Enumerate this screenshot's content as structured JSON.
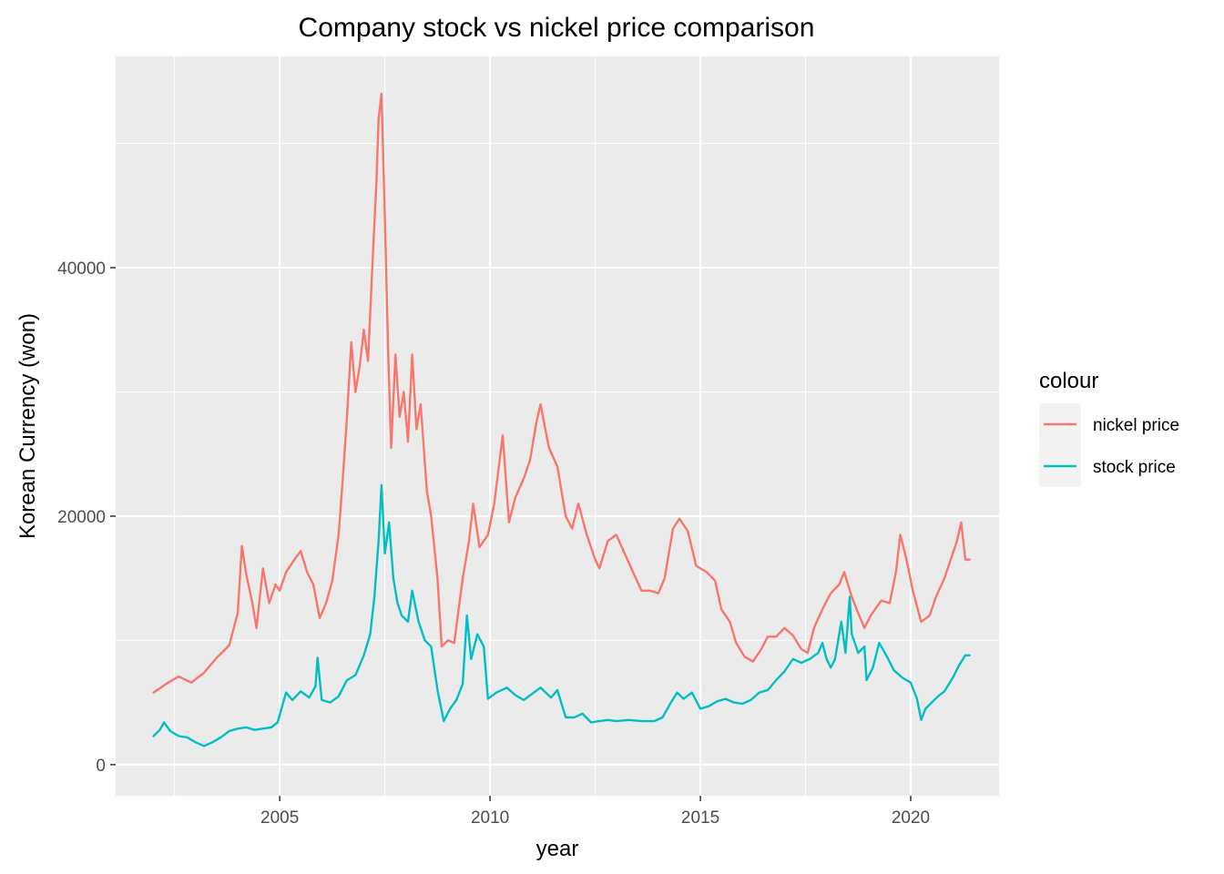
{
  "chart_data": {
    "type": "line",
    "title": "Company stock vs nickel price comparison",
    "xlabel": "year",
    "ylabel": "Korean Currency (won)",
    "xlim": [
      2001.1,
      2022.1
    ],
    "ylim": [
      -2500,
      57000
    ],
    "x_ticks": [
      2005,
      2010,
      2015,
      2020
    ],
    "x_tick_labels": [
      "2005",
      "2010",
      "2015",
      "2020"
    ],
    "y_ticks": [
      0,
      20000,
      40000
    ],
    "y_tick_labels": [
      "0",
      "20000",
      "40000"
    ],
    "grid": true,
    "legend": {
      "title": "colour",
      "position": "right"
    },
    "series": [
      {
        "name": "nickel price",
        "color": "#F8766D",
        "points": [
          [
            2002.0,
            5800
          ],
          [
            2002.3,
            6500
          ],
          [
            2002.6,
            7100
          ],
          [
            2002.9,
            6600
          ],
          [
            2003.2,
            7400
          ],
          [
            2003.5,
            8600
          ],
          [
            2003.8,
            9600
          ],
          [
            2004.0,
            12200
          ],
          [
            2004.1,
            17600
          ],
          [
            2004.2,
            15400
          ],
          [
            2004.35,
            13000
          ],
          [
            2004.45,
            11000
          ],
          [
            2004.6,
            15800
          ],
          [
            2004.75,
            13000
          ],
          [
            2004.9,
            14500
          ],
          [
            2005.0,
            14000
          ],
          [
            2005.15,
            15500
          ],
          [
            2005.35,
            16500
          ],
          [
            2005.5,
            17200
          ],
          [
            2005.65,
            15500
          ],
          [
            2005.8,
            14500
          ],
          [
            2005.95,
            11800
          ],
          [
            2006.1,
            13000
          ],
          [
            2006.25,
            14800
          ],
          [
            2006.4,
            18500
          ],
          [
            2006.5,
            23000
          ],
          [
            2006.6,
            28000
          ],
          [
            2006.7,
            34000
          ],
          [
            2006.8,
            30000
          ],
          [
            2006.9,
            32000
          ],
          [
            2007.0,
            35000
          ],
          [
            2007.1,
            32500
          ],
          [
            2007.2,
            40000
          ],
          [
            2007.3,
            47000
          ],
          [
            2007.35,
            52000
          ],
          [
            2007.42,
            54000
          ],
          [
            2007.5,
            44000
          ],
          [
            2007.58,
            33000
          ],
          [
            2007.65,
            25500
          ],
          [
            2007.75,
            33000
          ],
          [
            2007.85,
            28000
          ],
          [
            2007.95,
            30000
          ],
          [
            2008.05,
            26000
          ],
          [
            2008.15,
            33000
          ],
          [
            2008.25,
            27000
          ],
          [
            2008.35,
            29000
          ],
          [
            2008.5,
            22000
          ],
          [
            2008.6,
            20000
          ],
          [
            2008.75,
            15000
          ],
          [
            2008.85,
            9500
          ],
          [
            2009.0,
            10000
          ],
          [
            2009.15,
            9800
          ],
          [
            2009.35,
            15000
          ],
          [
            2009.5,
            18000
          ],
          [
            2009.6,
            21000
          ],
          [
            2009.75,
            17500
          ],
          [
            2009.95,
            18500
          ],
          [
            2010.1,
            21000
          ],
          [
            2010.3,
            26500
          ],
          [
            2010.45,
            19500
          ],
          [
            2010.6,
            21500
          ],
          [
            2010.8,
            23000
          ],
          [
            2010.95,
            24500
          ],
          [
            2011.1,
            27500
          ],
          [
            2011.2,
            29000
          ],
          [
            2011.4,
            25500
          ],
          [
            2011.6,
            24000
          ],
          [
            2011.8,
            20000
          ],
          [
            2011.95,
            19000
          ],
          [
            2012.1,
            21000
          ],
          [
            2012.3,
            18500
          ],
          [
            2012.5,
            16500
          ],
          [
            2012.6,
            15800
          ],
          [
            2012.8,
            18000
          ],
          [
            2013.0,
            18500
          ],
          [
            2013.2,
            17000
          ],
          [
            2013.4,
            15500
          ],
          [
            2013.6,
            14000
          ],
          [
            2013.8,
            14000
          ],
          [
            2014.0,
            13800
          ],
          [
            2014.15,
            15000
          ],
          [
            2014.35,
            19000
          ],
          [
            2014.5,
            19800
          ],
          [
            2014.7,
            18800
          ],
          [
            2014.9,
            16000
          ],
          [
            2015.15,
            15500
          ],
          [
            2015.35,
            14800
          ],
          [
            2015.5,
            12500
          ],
          [
            2015.7,
            11500
          ],
          [
            2015.85,
            9800
          ],
          [
            2016.05,
            8700
          ],
          [
            2016.25,
            8300
          ],
          [
            2016.45,
            9300
          ],
          [
            2016.6,
            10300
          ],
          [
            2016.8,
            10300
          ],
          [
            2017.0,
            11000
          ],
          [
            2017.2,
            10400
          ],
          [
            2017.4,
            9300
          ],
          [
            2017.55,
            9000
          ],
          [
            2017.7,
            11000
          ],
          [
            2017.9,
            12500
          ],
          [
            2018.1,
            13800
          ],
          [
            2018.3,
            14500
          ],
          [
            2018.42,
            15500
          ],
          [
            2018.6,
            13500
          ],
          [
            2018.75,
            12200
          ],
          [
            2018.9,
            11000
          ],
          [
            2019.05,
            12000
          ],
          [
            2019.3,
            13200
          ],
          [
            2019.5,
            13000
          ],
          [
            2019.65,
            15500
          ],
          [
            2019.75,
            18500
          ],
          [
            2019.9,
            16500
          ],
          [
            2020.05,
            14000
          ],
          [
            2020.25,
            11500
          ],
          [
            2020.45,
            12000
          ],
          [
            2020.6,
            13500
          ],
          [
            2020.8,
            15000
          ],
          [
            2020.95,
            16500
          ],
          [
            2021.1,
            18000
          ],
          [
            2021.2,
            19500
          ],
          [
            2021.3,
            16500
          ],
          [
            2021.4,
            16500
          ]
        ]
      },
      {
        "name": "stock price",
        "color": "#00BFC4",
        "points": [
          [
            2002.0,
            2300
          ],
          [
            2002.15,
            2800
          ],
          [
            2002.25,
            3400
          ],
          [
            2002.4,
            2700
          ],
          [
            2002.6,
            2300
          ],
          [
            2002.8,
            2200
          ],
          [
            2003.0,
            1800
          ],
          [
            2003.2,
            1500
          ],
          [
            2003.4,
            1800
          ],
          [
            2003.6,
            2200
          ],
          [
            2003.8,
            2700
          ],
          [
            2004.0,
            2900
          ],
          [
            2004.2,
            3000
          ],
          [
            2004.4,
            2800
          ],
          [
            2004.6,
            2900
          ],
          [
            2004.8,
            3000
          ],
          [
            2004.95,
            3400
          ],
          [
            2005.05,
            4600
          ],
          [
            2005.15,
            5800
          ],
          [
            2005.3,
            5200
          ],
          [
            2005.5,
            5900
          ],
          [
            2005.7,
            5400
          ],
          [
            2005.85,
            6300
          ],
          [
            2005.9,
            8600
          ],
          [
            2006.0,
            5200
          ],
          [
            2006.2,
            5000
          ],
          [
            2006.4,
            5500
          ],
          [
            2006.6,
            6800
          ],
          [
            2006.8,
            7200
          ],
          [
            2007.0,
            8800
          ],
          [
            2007.15,
            10500
          ],
          [
            2007.25,
            13500
          ],
          [
            2007.35,
            18000
          ],
          [
            2007.42,
            22500
          ],
          [
            2007.5,
            17000
          ],
          [
            2007.6,
            19500
          ],
          [
            2007.7,
            15000
          ],
          [
            2007.8,
            13000
          ],
          [
            2007.9,
            12000
          ],
          [
            2008.05,
            11500
          ],
          [
            2008.15,
            14000
          ],
          [
            2008.3,
            11500
          ],
          [
            2008.45,
            10000
          ],
          [
            2008.6,
            9500
          ],
          [
            2008.75,
            6000
          ],
          [
            2008.9,
            3500
          ],
          [
            2009.05,
            4500
          ],
          [
            2009.2,
            5200
          ],
          [
            2009.35,
            6500
          ],
          [
            2009.45,
            12000
          ],
          [
            2009.55,
            8500
          ],
          [
            2009.7,
            10500
          ],
          [
            2009.85,
            9500
          ],
          [
            2009.95,
            5300
          ],
          [
            2010.15,
            5800
          ],
          [
            2010.4,
            6200
          ],
          [
            2010.6,
            5600
          ],
          [
            2010.8,
            5200
          ],
          [
            2011.0,
            5700
          ],
          [
            2011.2,
            6200
          ],
          [
            2011.45,
            5400
          ],
          [
            2011.6,
            6000
          ],
          [
            2011.8,
            3800
          ],
          [
            2012.0,
            3800
          ],
          [
            2012.2,
            4100
          ],
          [
            2012.4,
            3400
          ],
          [
            2012.6,
            3500
          ],
          [
            2012.8,
            3600
          ],
          [
            2013.0,
            3500
          ],
          [
            2013.3,
            3600
          ],
          [
            2013.6,
            3500
          ],
          [
            2013.9,
            3500
          ],
          [
            2014.1,
            3800
          ],
          [
            2014.3,
            5000
          ],
          [
            2014.45,
            5800
          ],
          [
            2014.6,
            5300
          ],
          [
            2014.8,
            5800
          ],
          [
            2015.0,
            4500
          ],
          [
            2015.2,
            4700
          ],
          [
            2015.4,
            5100
          ],
          [
            2015.6,
            5300
          ],
          [
            2015.8,
            5000
          ],
          [
            2016.0,
            4900
          ],
          [
            2016.2,
            5200
          ],
          [
            2016.4,
            5800
          ],
          [
            2016.6,
            6000
          ],
          [
            2016.8,
            6800
          ],
          [
            2017.0,
            7500
          ],
          [
            2017.2,
            8500
          ],
          [
            2017.4,
            8200
          ],
          [
            2017.6,
            8500
          ],
          [
            2017.8,
            9000
          ],
          [
            2017.9,
            9800
          ],
          [
            2018.0,
            8500
          ],
          [
            2018.1,
            7800
          ],
          [
            2018.2,
            8500
          ],
          [
            2018.35,
            11500
          ],
          [
            2018.45,
            9000
          ],
          [
            2018.55,
            13500
          ],
          [
            2018.6,
            10500
          ],
          [
            2018.75,
            9000
          ],
          [
            2018.9,
            9500
          ],
          [
            2018.95,
            6800
          ],
          [
            2019.1,
            7800
          ],
          [
            2019.25,
            9800
          ],
          [
            2019.45,
            8600
          ],
          [
            2019.6,
            7600
          ],
          [
            2019.8,
            7000
          ],
          [
            2020.0,
            6600
          ],
          [
            2020.15,
            5300
          ],
          [
            2020.25,
            3600
          ],
          [
            2020.35,
            4500
          ],
          [
            2020.5,
            5000
          ],
          [
            2020.65,
            5500
          ],
          [
            2020.8,
            5900
          ],
          [
            2021.0,
            7000
          ],
          [
            2021.15,
            8000
          ],
          [
            2021.3,
            8800
          ],
          [
            2021.4,
            8800
          ]
        ]
      }
    ]
  }
}
